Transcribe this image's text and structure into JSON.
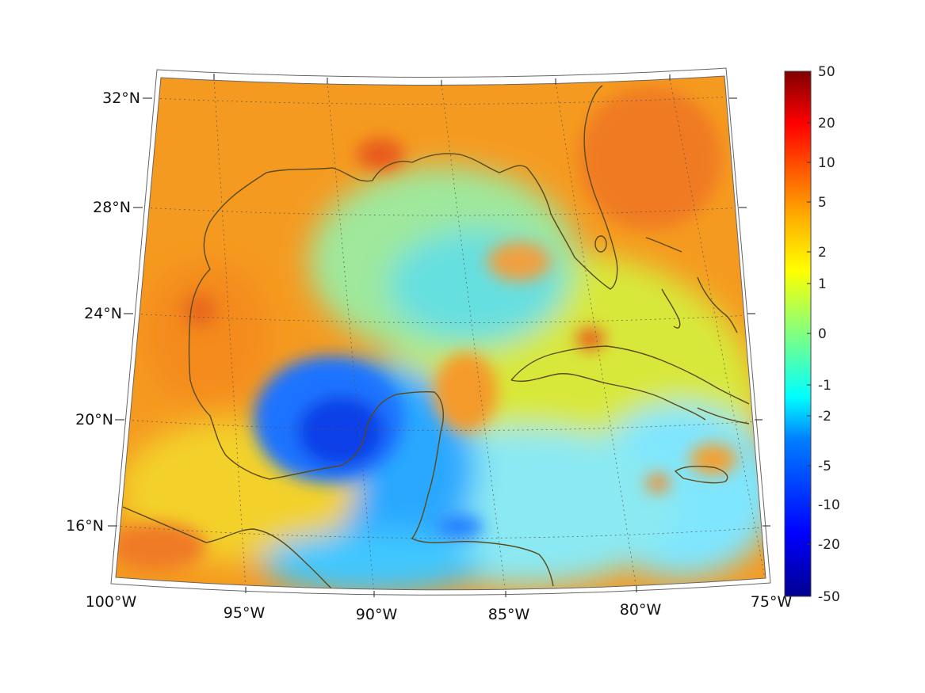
{
  "map": {
    "lon_range": [
      -100,
      -75
    ],
    "lat_range": [
      14,
      33
    ],
    "projection": "conic",
    "grid": true
  },
  "axis": {
    "lon_labels": [
      "100°W",
      "95°W",
      "90°W",
      "85°W",
      "80°W",
      "75°W"
    ],
    "lat_labels": [
      "16°N",
      "20°N",
      "24°N",
      "28°N",
      "32°N"
    ]
  },
  "colorbar": {
    "position": "right",
    "scale": "symmetric-log",
    "labels": [
      "50",
      "20",
      "10",
      "5",
      "2",
      "1",
      "0",
      "-1",
      "-2",
      "-5",
      "-10",
      "-20",
      "-50"
    ],
    "colors": [
      "#800000",
      "#ff0000",
      "#ff8000",
      "#ffff00",
      "#80ff80",
      "#00ffff",
      "#0080ff",
      "#0000ff",
      "#000080"
    ]
  },
  "colors": {
    "coastline": "#5a4a1a",
    "warm_field": "#f7a21b",
    "cool_field": "#1a6dff",
    "neutral_field": "#c8f23a"
  }
}
